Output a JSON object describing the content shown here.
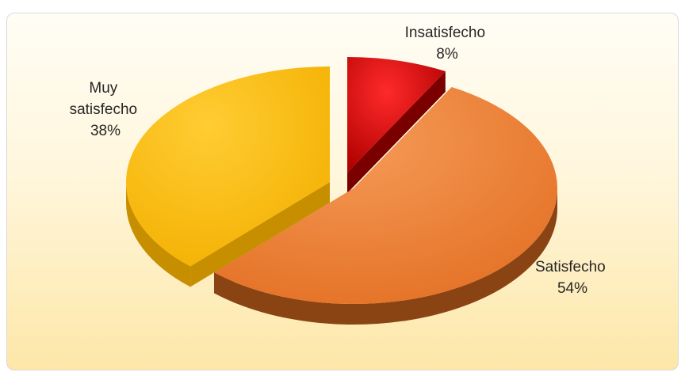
{
  "chart_data": {
    "type": "pie",
    "title": "",
    "slices": [
      {
        "label": "Insatisfecho",
        "label_lines": [
          "Insatisfecho"
        ],
        "value": 8,
        "value_label": "8%",
        "color": "#c00000",
        "side_color": "#7a0000"
      },
      {
        "label": "Satisfecho",
        "label_lines": [
          "Satisfecho"
        ],
        "value": 54,
        "value_label": "54%",
        "color": "#ed7d31",
        "side_color": "#8a4414"
      },
      {
        "label": "Muy satisfecho",
        "label_lines": [
          "Muy",
          "satisfecho"
        ],
        "value": 38,
        "value_label": "38%",
        "color": "#ffc000",
        "side_color": "#c78f00"
      }
    ],
    "exploded": true,
    "three_d": true,
    "legend": "none"
  }
}
